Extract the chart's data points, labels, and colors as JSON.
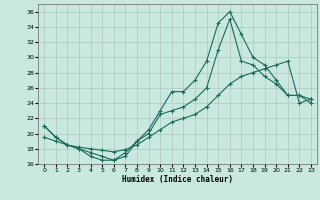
{
  "xlabel": "Humidex (Indice chaleur)",
  "bg_color": "#c8e8e0",
  "grid_color": "#b0c8c0",
  "line_color": "#1a6b5a",
  "xlim": [
    -0.5,
    23.5
  ],
  "ylim": [
    16,
    37
  ],
  "xticks": [
    0,
    1,
    2,
    3,
    4,
    5,
    6,
    7,
    8,
    9,
    10,
    11,
    12,
    13,
    14,
    15,
    16,
    17,
    18,
    19,
    20,
    21,
    22,
    23
  ],
  "yticks": [
    16,
    18,
    20,
    22,
    24,
    26,
    28,
    30,
    32,
    34,
    36
  ],
  "line1_x": [
    0,
    1,
    2,
    3,
    4,
    5,
    6,
    7,
    8,
    9,
    10,
    11,
    12,
    13,
    14,
    15,
    16,
    17,
    18,
    19,
    20,
    21,
    22,
    23
  ],
  "line1_y": [
    21,
    19.5,
    18.5,
    18,
    17,
    16.5,
    16.5,
    17,
    19,
    20.5,
    23,
    25.5,
    25.5,
    27,
    29.5,
    34.5,
    36,
    33,
    30,
    29,
    27,
    25,
    25,
    24
  ],
  "line2_x": [
    0,
    1,
    2,
    3,
    4,
    5,
    6,
    7,
    8,
    9,
    10,
    11,
    12,
    13,
    14,
    15,
    16,
    17,
    18,
    19,
    20,
    21,
    22,
    23
  ],
  "line2_y": [
    21,
    19.5,
    18.5,
    18,
    17.5,
    17,
    16.5,
    17.5,
    19,
    20,
    22.5,
    23,
    23.5,
    24.5,
    26,
    31,
    35,
    29.5,
    29,
    27.5,
    26.5,
    25,
    25,
    24.5
  ],
  "line3_x": [
    0,
    1,
    2,
    3,
    4,
    5,
    6,
    7,
    8,
    9,
    10,
    11,
    12,
    13,
    14,
    15,
    16,
    17,
    18,
    19,
    20,
    21,
    22,
    23
  ],
  "line3_y": [
    19.5,
    19,
    18.5,
    18.2,
    18,
    17.8,
    17.6,
    17.9,
    18.5,
    19.5,
    20.5,
    21.5,
    22,
    22.5,
    23.5,
    25,
    26.5,
    27.5,
    28,
    28.5,
    29,
    29.5,
    24,
    24.5
  ]
}
